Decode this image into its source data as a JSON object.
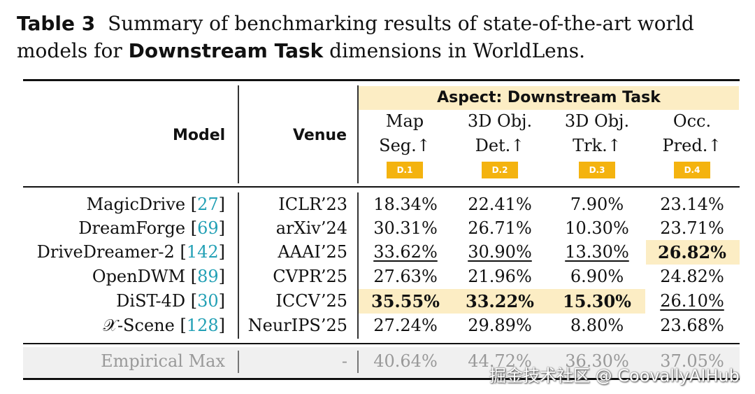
{
  "caption": {
    "label": "Table 3",
    "text_1": "Summary of benchmarking results of state-of-the-art world models for",
    "bold_term": "Downstream Task",
    "text_2": "dimensions in WorldLens."
  },
  "header": {
    "model": "Model",
    "venue": "Venue",
    "aspect": "Aspect: Downstream Task",
    "metrics": [
      {
        "line1": "Map",
        "line2": "Seg.↑",
        "tag": "D.1"
      },
      {
        "line1": "3D Obj.",
        "line2": "Det.↑",
        "tag": "D.2"
      },
      {
        "line1": "3D Obj.",
        "line2": "Trk.↑",
        "tag": "D.3"
      },
      {
        "line1": "Occ.",
        "line2": "Pred.↑",
        "tag": "D.4"
      }
    ]
  },
  "rows": [
    {
      "model": "MagicDrive",
      "ref": "27",
      "venue": "ICLR’23",
      "values": [
        "18.34%",
        "22.41%",
        "7.90%",
        "23.14%"
      ]
    },
    {
      "model": "DreamForge",
      "ref": "69",
      "venue": "arXiv’24",
      "values": [
        "30.31%",
        "26.71%",
        "10.30%",
        "23.71%"
      ]
    },
    {
      "model": "DriveDreamer-2",
      "ref": "142",
      "venue": "AAAI’25",
      "values": [
        "33.62%",
        "30.90%",
        "13.30%",
        "26.82%"
      ]
    },
    {
      "model": "OpenDWM",
      "ref": "89",
      "venue": "CVPR’25",
      "values": [
        "27.63%",
        "21.96%",
        "6.90%",
        "24.82%"
      ]
    },
    {
      "model": "DiST-4D",
      "ref": "30",
      "venue": "ICCV’25",
      "values": [
        "35.55%",
        "33.22%",
        "15.30%",
        "26.10%"
      ]
    },
    {
      "model": "𝒳-Scene",
      "ref": "128",
      "venue": "NeurIPS’25",
      "values": [
        "27.24%",
        "29.89%",
        "8.80%",
        "23.68%"
      ]
    }
  ],
  "empirical": {
    "model": "Empirical Max",
    "venue": "-",
    "values": [
      "40.64%",
      "44.72%",
      "36.30%",
      "37.05%"
    ]
  },
  "watermark": "掘金技术社区 @ CoovallyAIHub",
  "colors": {
    "highlight": "#fcedc4",
    "tag": "#f4b30f",
    "ref": "#22a0b5"
  }
}
